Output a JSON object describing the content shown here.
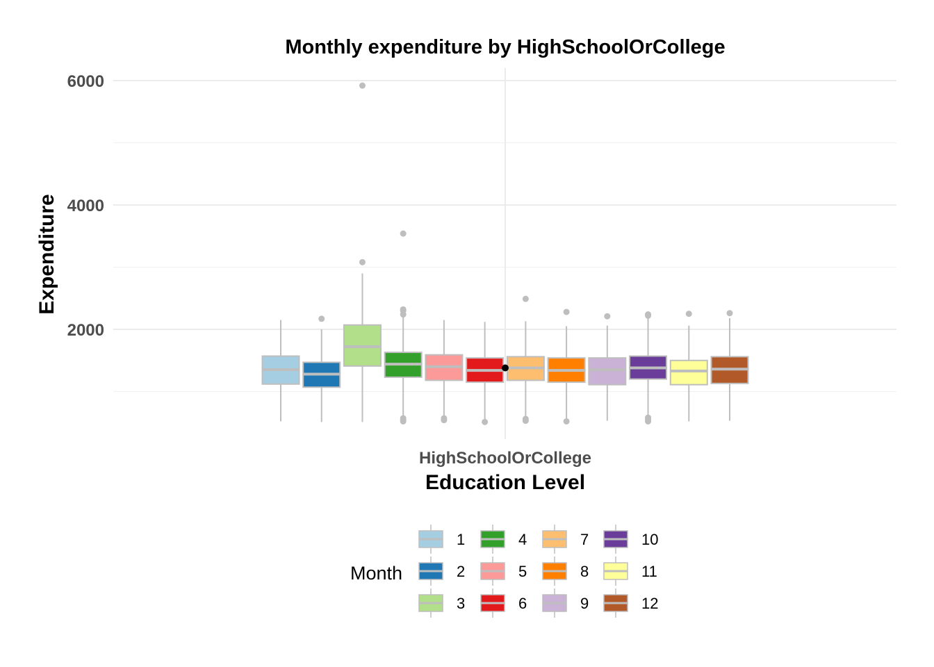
{
  "chart_data": {
    "type": "box",
    "title": "Monthly expenditure by HighSchoolOrCollege",
    "xlabel": "Education Level",
    "ylabel": "Expenditure",
    "categories": [
      "HighSchoolOrCollege"
    ],
    "ylim": [
      380,
      6200
    ],
    "yticks": [
      2000,
      4000,
      6000
    ],
    "yticks_labels": [
      "2000",
      "4000",
      "6000"
    ],
    "grid": true,
    "legend": {
      "title": "Month",
      "position": "bottom"
    },
    "overall_mean": 1380,
    "series": [
      {
        "name": "1",
        "color": "#A6CEE3",
        "min": 520,
        "q1": 1120,
        "median": 1350,
        "q3": 1570,
        "max": 2150,
        "outliers": []
      },
      {
        "name": "2",
        "color": "#1F78B4",
        "min": 510,
        "q1": 1070,
        "median": 1280,
        "q3": 1470,
        "max": 2000,
        "outliers": [
          2170
        ]
      },
      {
        "name": "3",
        "color": "#B2DF8A",
        "min": 510,
        "q1": 1410,
        "median": 1720,
        "q3": 2070,
        "max": 2900,
        "outliers": [
          3080,
          5920
        ]
      },
      {
        "name": "4",
        "color": "#33A02C",
        "min": 600,
        "q1": 1230,
        "median": 1440,
        "q3": 1630,
        "max": 2200,
        "outliers": [
          2240,
          2300,
          2320,
          3540,
          520,
          540,
          570
        ]
      },
      {
        "name": "5",
        "color": "#FB9A99",
        "min": 610,
        "q1": 1180,
        "median": 1400,
        "q3": 1590,
        "max": 2150,
        "outliers": [
          540,
          570
        ]
      },
      {
        "name": "6",
        "color": "#E31A1C",
        "min": 510,
        "q1": 1150,
        "median": 1340,
        "q3": 1540,
        "max": 2120,
        "outliers": [
          510
        ]
      },
      {
        "name": "7",
        "color": "#FDBF6F",
        "min": 600,
        "q1": 1180,
        "median": 1380,
        "q3": 1560,
        "max": 2130,
        "outliers": [
          2490,
          530,
          560
        ]
      },
      {
        "name": "8",
        "color": "#FF7F00",
        "min": 530,
        "q1": 1150,
        "median": 1340,
        "q3": 1540,
        "max": 2050,
        "outliers": [
          2280,
          520
        ]
      },
      {
        "name": "9",
        "color": "#CAB2D6",
        "min": 530,
        "q1": 1110,
        "median": 1350,
        "q3": 1540,
        "max": 2060,
        "outliers": [
          2210
        ]
      },
      {
        "name": "10",
        "color": "#6A3D9A",
        "min": 600,
        "q1": 1200,
        "median": 1380,
        "q3": 1570,
        "max": 2180,
        "outliers": [
          2220,
          2240,
          520,
          550,
          580
        ]
      },
      {
        "name": "11",
        "color": "#FFFF99",
        "min": 520,
        "q1": 1110,
        "median": 1330,
        "q3": 1500,
        "max": 2060,
        "outliers": [
          2250
        ]
      },
      {
        "name": "12",
        "color": "#B15928",
        "min": 530,
        "q1": 1130,
        "median": 1360,
        "q3": 1560,
        "max": 2180,
        "outliers": [
          2260
        ]
      }
    ]
  }
}
